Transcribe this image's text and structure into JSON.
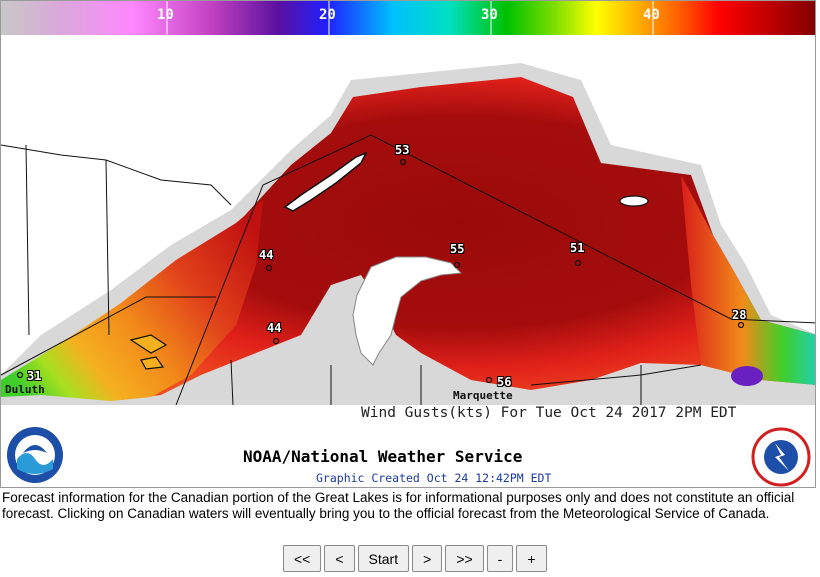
{
  "colorbar": {
    "tick_labels": [
      "10",
      "20",
      "30",
      "40"
    ],
    "colors": [
      "#c8c8c8",
      "#d9a9d9",
      "#ff88ff",
      "#c040c0",
      "#5a10a0",
      "#2020ff",
      "#00c0ff",
      "#00e0c0",
      "#00c000",
      "#80e000",
      "#ffff00",
      "#ffb000",
      "#ff6000",
      "#ff0000",
      "#c00000",
      "#800000"
    ]
  },
  "map": {
    "caption": "Wind Gusts(kts) For Tue Oct 24 2017  2PM EDT",
    "stations": [
      {
        "id": "duluth",
        "value": "31"
      },
      {
        "id": "north-shore",
        "value": "44"
      },
      {
        "id": "south-shore",
        "value": "44"
      },
      {
        "id": "isle-royale",
        "value": "53"
      },
      {
        "id": "keweenaw",
        "value": "55"
      },
      {
        "id": "central",
        "value": "51"
      },
      {
        "id": "marquette",
        "value": "56"
      },
      {
        "id": "whitefish",
        "value": "28"
      }
    ],
    "cities": {
      "duluth": "Duluth",
      "marquette": "Marquette"
    },
    "colors": {
      "peak": "#9b0a0a",
      "high": "#e0201a",
      "orange": "#f28a1a",
      "green": "#3fce2a",
      "teal": "#20d0b0",
      "purple": "#6a20c0"
    }
  },
  "header": {
    "title": "NOAA/National Weather Service",
    "created": "Graphic Created Oct 24 12:42PM EDT"
  },
  "disclaimer": "Forecast information for the Canadian portion of the Great Lakes is for informational purposes only and does not constitute an official forecast. Clicking on Canadian waters will eventually bring you to the official forecast from the Meteorological Service of Canada.",
  "nav": {
    "first": "<<",
    "prev": "<",
    "start": "Start",
    "next": ">",
    "last": ">>",
    "zoom_out": "-",
    "zoom_in": "+"
  }
}
